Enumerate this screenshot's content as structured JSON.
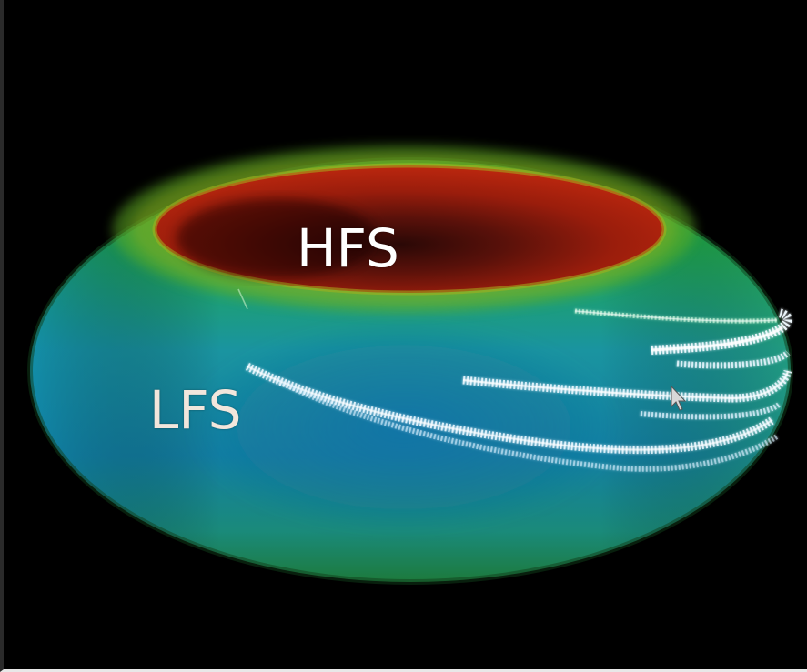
{
  "labels": {
    "hfs": "HFS",
    "lfs": "LFS"
  },
  "colors": {
    "background": "#000000",
    "inner_wall": "#9a1a0a",
    "torus_top": "#1f9a2a",
    "torus_outer": "#1a7f9a",
    "trajectory": "#e8f6ff"
  },
  "icons": [
    "mouse-pointer-icon"
  ]
}
